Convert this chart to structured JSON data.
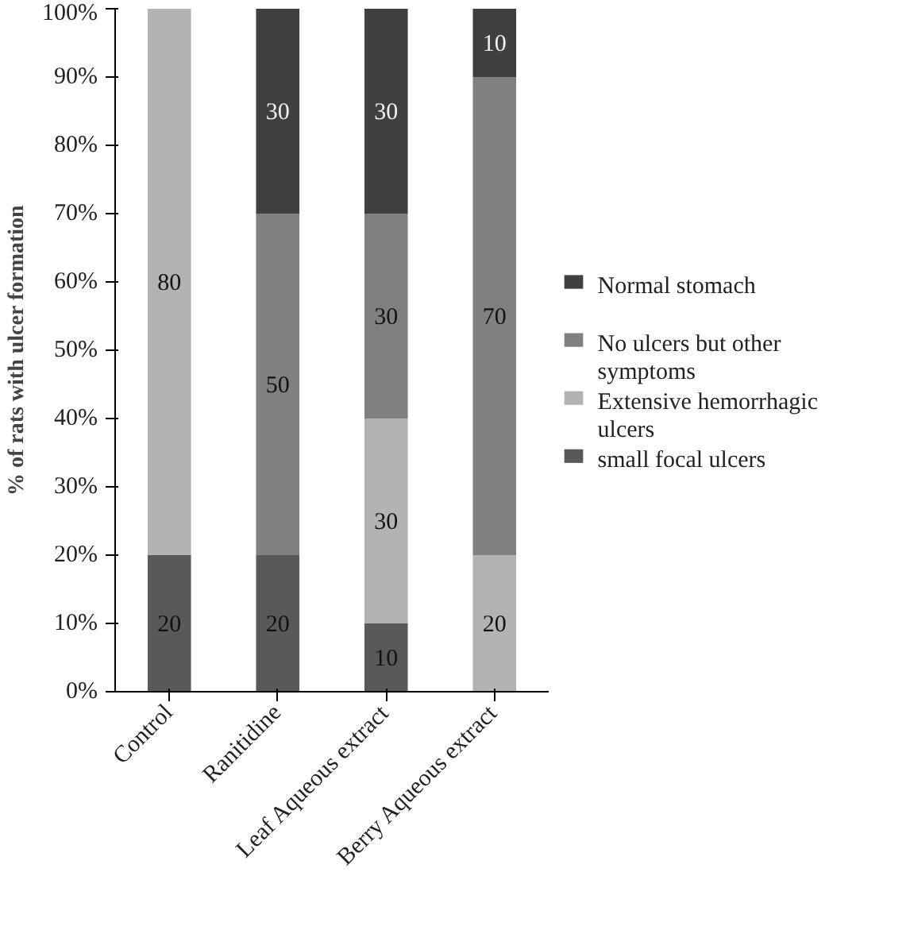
{
  "chart_data": {
    "type": "bar",
    "stacked": true,
    "ylabel": "% of rats with ulcer formation",
    "categories": [
      "Control",
      "Ranitidine",
      "Leaf Aqueous extract",
      "Berry Aqueous extract"
    ],
    "series": [
      {
        "name": "small focal ulcers",
        "color": "#595959",
        "values": [
          20,
          20,
          10,
          0
        ],
        "value_labels": [
          "20",
          "20",
          "10",
          null
        ]
      },
      {
        "name": "Extensive hemorrhagic ulcers",
        "color": "#b3b3b3",
        "values": [
          80,
          0,
          30,
          20
        ],
        "value_labels": [
          "80",
          null,
          "30",
          "20"
        ]
      },
      {
        "name": "No ulcers but other symptoms",
        "color": "#808080",
        "values": [
          0,
          50,
          30,
          70
        ],
        "value_labels": [
          null,
          "50",
          "30",
          "70"
        ]
      },
      {
        "name": "Normal stomach",
        "color": "#404040",
        "values": [
          0,
          30,
          30,
          10
        ],
        "value_labels": [
          null,
          "30",
          "30",
          "10"
        ]
      }
    ],
    "ylim": [
      0,
      100
    ],
    "yticks": [
      {
        "value": 0,
        "label": "0%"
      },
      {
        "value": 10,
        "label": "10%"
      },
      {
        "value": 20,
        "label": "20%"
      },
      {
        "value": 30,
        "label": "30%"
      },
      {
        "value": 40,
        "label": "40%"
      },
      {
        "value": 50,
        "label": "50%"
      },
      {
        "value": 60,
        "label": "60%"
      },
      {
        "value": 70,
        "label": "70%"
      },
      {
        "value": 80,
        "label": "80%"
      },
      {
        "value": 90,
        "label": "90%"
      },
      {
        "value": 100,
        "label": "100%"
      }
    ],
    "grid": false,
    "legend": "right"
  }
}
